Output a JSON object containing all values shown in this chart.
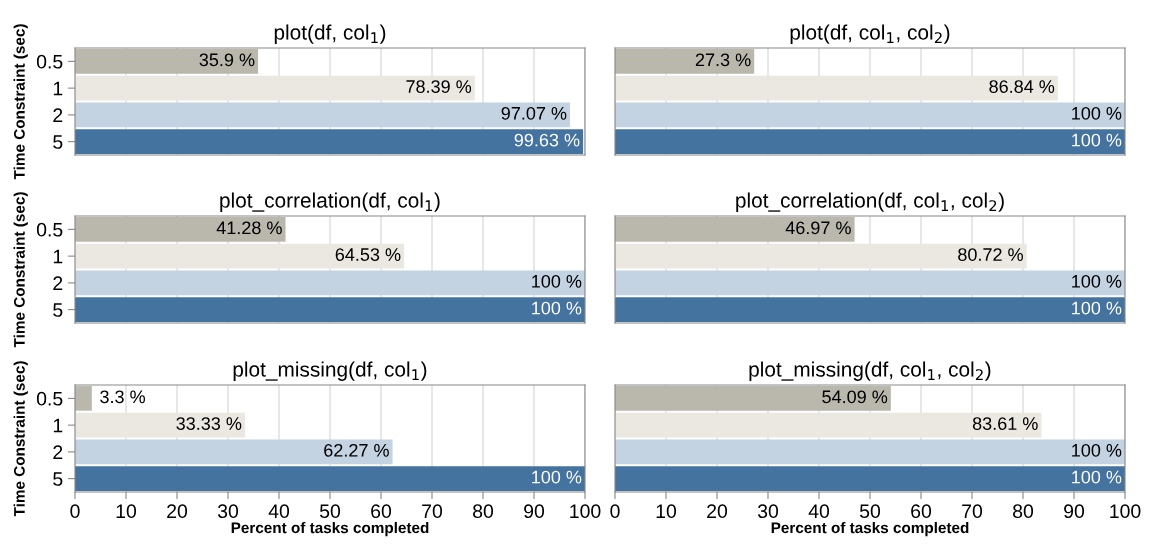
{
  "chart_data": [
    {
      "type": "bar",
      "orientation": "horizontal",
      "title": "plot(df, col$_{1}$)",
      "ylabel": "Time Constraint (sec)",
      "categories": [
        "0.5",
        "1",
        "2",
        "5"
      ],
      "values": [
        35.9,
        78.39,
        97.07,
        99.63
      ],
      "value_labels": [
        "35.9 %",
        "78.39 %",
        "97.07 %",
        "99.63 %"
      ],
      "colors": [
        "#bab7ac",
        "#ebe7e1",
        "#c4d3e2",
        "#45739f"
      ],
      "xlim": [
        0,
        100
      ],
      "xticks": [
        0,
        10,
        20,
        30,
        40,
        50,
        60,
        70,
        80,
        90,
        100
      ],
      "grid": "x",
      "tick_labels": "y"
    },
    {
      "type": "bar",
      "orientation": "horizontal",
      "title": "plot(df, col$_{1}$, col$_{2}$)",
      "categories": [
        "0.5",
        "1",
        "2",
        "5"
      ],
      "values": [
        27.3,
        86.84,
        100,
        100
      ],
      "value_labels": [
        "27.3 %",
        "86.84 %",
        "100 %",
        "100 %"
      ],
      "colors": [
        "#bab7ac",
        "#ebe7e1",
        "#c4d3e2",
        "#45739f"
      ],
      "xlim": [
        0,
        100
      ],
      "xticks": [
        0,
        10,
        20,
        30,
        40,
        50,
        60,
        70,
        80,
        90,
        100
      ],
      "grid": "x",
      "tick_labels": false
    },
    {
      "type": "bar",
      "orientation": "horizontal",
      "title": "plot_correlation(df, col$_{1}$)",
      "ylabel": "Time Constraint (sec)",
      "categories": [
        "0.5",
        "1",
        "2",
        "5"
      ],
      "values": [
        41.28,
        64.53,
        100,
        100
      ],
      "value_labels": [
        "41.28 %",
        "64.53 %",
        "100 %",
        "100 %"
      ],
      "colors": [
        "#bab7ac",
        "#ebe7e1",
        "#c4d3e2",
        "#45739f"
      ],
      "xlim": [
        0,
        100
      ],
      "xticks": [
        0,
        10,
        20,
        30,
        40,
        50,
        60,
        70,
        80,
        90,
        100
      ],
      "grid": "x",
      "tick_labels": "y"
    },
    {
      "type": "bar",
      "orientation": "horizontal",
      "title": "plot_correlation(df, col$_{1}$, col$_{2}$)",
      "categories": [
        "0.5",
        "1",
        "2",
        "5"
      ],
      "values": [
        46.97,
        80.72,
        100,
        100
      ],
      "value_labels": [
        "46.97 %",
        "80.72 %",
        "100 %",
        "100 %"
      ],
      "colors": [
        "#bab7ac",
        "#ebe7e1",
        "#c4d3e2",
        "#45739f"
      ],
      "xlim": [
        0,
        100
      ],
      "xticks": [
        0,
        10,
        20,
        30,
        40,
        50,
        60,
        70,
        80,
        90,
        100
      ],
      "grid": "x",
      "tick_labels": false
    },
    {
      "type": "bar",
      "orientation": "horizontal",
      "title": "plot_missing(df, col$_{1}$)",
      "ylabel": "Time Constraint (sec)",
      "xlabel": "Percent of tasks completed",
      "categories": [
        "0.5",
        "1",
        "2",
        "5"
      ],
      "values": [
        3.3,
        33.33,
        62.27,
        100
      ],
      "value_labels": [
        "3.3 %",
        "33.33 %",
        "62.27 %",
        "100 %"
      ],
      "colors": [
        "#bab7ac",
        "#ebe7e1",
        "#c4d3e2",
        "#45739f"
      ],
      "xlim": [
        0,
        100
      ],
      "xticks": [
        0,
        10,
        20,
        30,
        40,
        50,
        60,
        70,
        80,
        90,
        100
      ],
      "grid": "x"
    },
    {
      "type": "bar",
      "orientation": "horizontal",
      "title": "plot_missing(df, col$_{1}$, col$_{2}$)",
      "xlabel": "Percent of tasks completed",
      "categories": [
        "0.5",
        "1",
        "2",
        "5"
      ],
      "values": [
        54.09,
        83.61,
        100,
        100
      ],
      "value_labels": [
        "54.09 %",
        "83.61 %",
        "100 %",
        "100 %"
      ],
      "colors": [
        "#bab7ac",
        "#ebe7e1",
        "#c4d3e2",
        "#45739f"
      ],
      "xlim": [
        0,
        100
      ],
      "xticks": [
        0,
        10,
        20,
        30,
        40,
        50,
        60,
        70,
        80,
        90,
        100
      ],
      "grid": "x",
      "tick_labels": "x"
    }
  ]
}
